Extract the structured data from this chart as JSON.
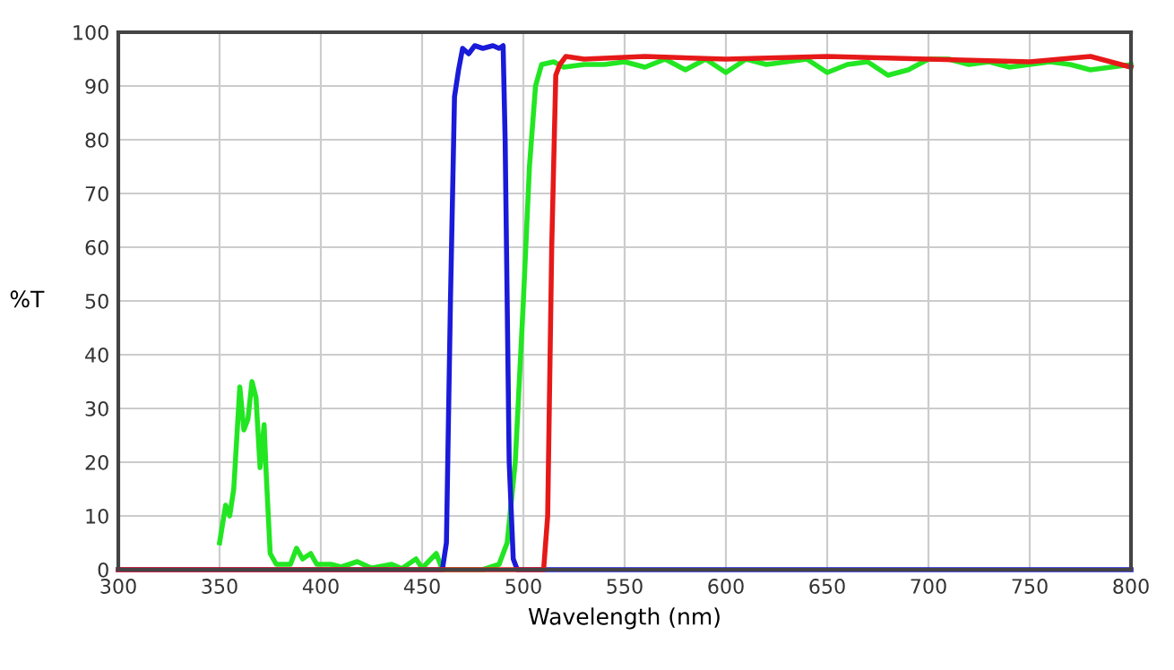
{
  "chart_data": {
    "type": "line",
    "xlabel": "Wavelength (nm)",
    "ylabel": "%T",
    "xlim": [
      300,
      800
    ],
    "ylim": [
      0,
      100
    ],
    "xticks": [
      300,
      350,
      400,
      450,
      500,
      550,
      600,
      650,
      700,
      750,
      800
    ],
    "yticks": [
      0,
      10,
      20,
      30,
      40,
      50,
      60,
      70,
      80,
      90,
      100
    ],
    "grid": true,
    "marker": "none",
    "line_style": "solid",
    "series": [
      {
        "color": "#22e622",
        "x": [
          350,
          353,
          355,
          357,
          360,
          362,
          364,
          366,
          368,
          370,
          372,
          373,
          375,
          378,
          385,
          388,
          391,
          395,
          398,
          405,
          410,
          418,
          425,
          435,
          440,
          447,
          450,
          457,
          460,
          480,
          488,
          492,
          496,
          500,
          503,
          506,
          509,
          515,
          520,
          530,
          540,
          550,
          560,
          570,
          580,
          590,
          600,
          610,
          620,
          630,
          640,
          650,
          660,
          670,
          680,
          690,
          700,
          710,
          720,
          730,
          740,
          750,
          760,
          770,
          780,
          790,
          800
        ],
        "values": [
          5,
          12,
          10,
          15,
          34,
          26,
          28,
          35,
          32,
          19,
          27,
          18,
          3,
          1,
          1,
          4,
          2,
          3,
          1,
          1,
          0.5,
          1.5,
          0.3,
          1,
          0.2,
          2,
          0.3,
          3,
          0,
          0,
          1,
          5,
          20,
          50,
          75,
          90,
          94,
          94.5,
          93.5,
          94,
          94,
          94.5,
          93.5,
          95,
          93,
          95,
          92.5,
          95,
          94,
          94.5,
          95,
          92.5,
          94,
          94.5,
          92,
          93,
          95,
          95,
          94,
          94.5,
          93.5,
          94,
          94.5,
          94,
          93,
          93.5,
          94
        ]
      },
      {
        "color": "#1a1ad9",
        "x": [
          300,
          460,
          462,
          464,
          466,
          468,
          470,
          473,
          476,
          480,
          485,
          488,
          490,
          491,
          492,
          493,
          495,
          497,
          800
        ],
        "values": [
          0,
          0,
          5,
          50,
          88,
          93,
          97,
          96,
          97.5,
          97,
          97.5,
          97,
          97.5,
          80,
          50,
          20,
          2,
          0,
          0
        ]
      },
      {
        "color": "#e61919",
        "x": [
          300,
          510,
          512,
          514,
          516,
          518,
          521,
          530,
          560,
          600,
          650,
          700,
          750,
          780,
          800
        ],
        "values": [
          0,
          0,
          10,
          60,
          92,
          94,
          95.5,
          95,
          95.5,
          95,
          95.5,
          95,
          94.5,
          95.5,
          93.5
        ]
      }
    ]
  }
}
